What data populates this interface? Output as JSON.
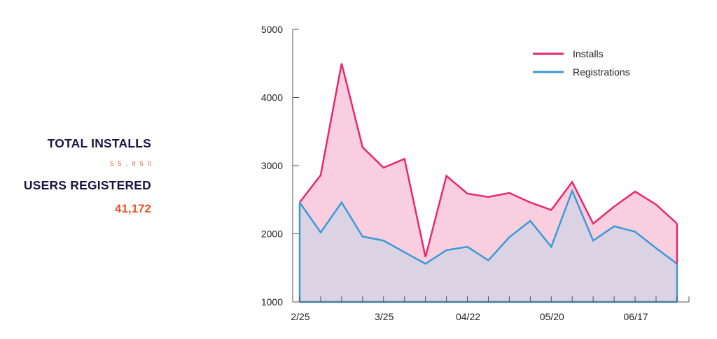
{
  "summary": {
    "total_installs_label": "TOTAL INSTALLS",
    "total_installs_value": "55,950",
    "users_registered_label": "USERS REGISTERED",
    "users_registered_value": "41,172"
  },
  "colors": {
    "installs": "#e6286e",
    "installs_fill": "#f9cfdf",
    "registrations": "#3a9ad9",
    "overlap_fill": "#dbd3e3",
    "axis": "#555555",
    "label_dark": "#1a1446",
    "value_orange": "#e8542a"
  },
  "chart_data": {
    "type": "area",
    "x_tick_labels": [
      "2/25",
      "3/25",
      "04/22",
      "05/20",
      "06/17"
    ],
    "x_tick_label_positions": [
      0,
      4,
      8,
      12,
      16
    ],
    "ylim": [
      1000,
      5000
    ],
    "y_ticks": [
      1000,
      2000,
      3000,
      4000,
      5000
    ],
    "grid": false,
    "legend_position": "top-right",
    "series": [
      {
        "name": "Installs",
        "values": [
          2460,
          2860,
          4500,
          3270,
          2970,
          3100,
          1660,
          2850,
          2590,
          2540,
          2600,
          2460,
          2350,
          2760,
          2150,
          2400,
          2620,
          2430,
          2150
        ]
      },
      {
        "name": "Registrations",
        "values": [
          2460,
          2020,
          2460,
          1960,
          1900,
          1730,
          1560,
          1760,
          1810,
          1610,
          1950,
          2190,
          1810,
          2630,
          1900,
          2110,
          2030,
          1790,
          1560
        ]
      }
    ]
  }
}
